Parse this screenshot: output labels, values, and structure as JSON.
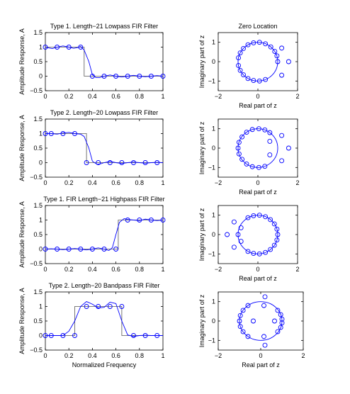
{
  "chart_data": [
    {
      "type": "line",
      "title": "Type 1. Length−21 Lowpass FIR Filter",
      "xlabel": "",
      "ylabel": "Amplitude Response, A",
      "xlim": [
        0,
        1
      ],
      "ylim": [
        -0.5,
        1.5
      ],
      "xticks": [
        "0",
        "0.2",
        "0.4",
        "0.6",
        "0.8",
        "1"
      ],
      "yticks": [
        "−0.5",
        "0",
        "0.5",
        "1",
        "1.5"
      ],
      "ideal": [
        [
          0,
          1
        ],
        [
          0.33,
          1
        ],
        [
          0.33,
          0
        ],
        [
          1,
          0
        ]
      ],
      "response": [
        [
          0,
          1
        ],
        [
          0.03,
          0.97
        ],
        [
          0.06,
          0.95
        ],
        [
          0.1,
          1
        ],
        [
          0.15,
          1.04
        ],
        [
          0.2,
          1
        ],
        [
          0.24,
          0.96
        ],
        [
          0.27,
          0.98
        ],
        [
          0.3,
          1.02
        ],
        [
          0.33,
          0.9
        ],
        [
          0.37,
          0.5
        ],
        [
          0.4,
          0.05
        ],
        [
          0.43,
          -0.05
        ],
        [
          0.46,
          -0.05
        ],
        [
          0.5,
          0
        ],
        [
          0.55,
          0.04
        ],
        [
          0.6,
          0
        ],
        [
          0.65,
          -0.03
        ],
        [
          0.7,
          0
        ],
        [
          0.75,
          0.03
        ],
        [
          0.8,
          0
        ],
        [
          0.85,
          -0.02
        ],
        [
          0.9,
          0
        ],
        [
          0.95,
          0.02
        ],
        [
          1,
          0
        ]
      ],
      "samples": [
        [
          0,
          1
        ],
        [
          0.1,
          1
        ],
        [
          0.2,
          1
        ],
        [
          0.3,
          1
        ],
        [
          0.4,
          0
        ],
        [
          0.5,
          0
        ],
        [
          0.6,
          0
        ],
        [
          0.7,
          0
        ],
        [
          0.8,
          0
        ],
        [
          0.9,
          0
        ],
        [
          1,
          0
        ]
      ]
    },
    {
      "type": "scatter",
      "title": "Zero Location",
      "xlabel": "Real part of z",
      "ylabel": "Imaginary part of z",
      "xlim": [
        -2,
        2
      ],
      "ylim": [
        -1.5,
        1.5
      ],
      "xticks": [
        "−2",
        "0",
        "2"
      ],
      "yticks": [
        "−1",
        "0",
        "1"
      ],
      "zeros": [
        [
          1.0,
          0.0
        ],
        [
          0.96,
          0.3
        ],
        [
          0.85,
          0.53
        ],
        [
          0.65,
          0.76
        ],
        [
          0.38,
          0.92
        ],
        [
          0.08,
          1.0
        ],
        [
          -0.22,
          0.97
        ],
        [
          -0.5,
          0.87
        ],
        [
          -0.73,
          0.68
        ],
        [
          -0.89,
          0.45
        ],
        [
          -0.98,
          0.2
        ],
        [
          -0.98,
          -0.2
        ],
        [
          -0.89,
          -0.45
        ],
        [
          -0.73,
          -0.68
        ],
        [
          -0.5,
          -0.87
        ],
        [
          -0.22,
          -0.97
        ],
        [
          0.08,
          -1.0
        ],
        [
          0.38,
          -0.92
        ],
        [
          1.2,
          0.7
        ],
        [
          1.2,
          -0.7
        ],
        [
          1.55,
          0.0
        ]
      ]
    },
    {
      "type": "line",
      "title": "Type 2. Length−20 Lowpass FIR Filter",
      "xlabel": "",
      "ylabel": "Amplitude Response, A",
      "xlim": [
        0,
        1
      ],
      "ylim": [
        -0.5,
        1.5
      ],
      "xticks": [
        "0",
        "0.2",
        "0.4",
        "0.6",
        "0.8",
        "1"
      ],
      "yticks": [
        "−0.5",
        "0",
        "0.5",
        "1",
        "1.5"
      ],
      "ideal": [
        [
          0,
          1
        ],
        [
          0.35,
          1
        ],
        [
          0.35,
          0
        ],
        [
          1,
          0
        ]
      ],
      "response": [
        [
          0,
          1
        ],
        [
          0.05,
          1
        ],
        [
          0.1,
          0.98
        ],
        [
          0.15,
          1.02
        ],
        [
          0.2,
          1.04
        ],
        [
          0.25,
          1
        ],
        [
          0.3,
          0.98
        ],
        [
          0.33,
          0.9
        ],
        [
          0.37,
          0.5
        ],
        [
          0.4,
          0.05
        ],
        [
          0.44,
          -0.06
        ],
        [
          0.47,
          -0.04
        ],
        [
          0.5,
          0
        ],
        [
          0.55,
          0.04
        ],
        [
          0.6,
          0
        ],
        [
          0.65,
          -0.03
        ],
        [
          0.7,
          0
        ],
        [
          0.75,
          0.02
        ],
        [
          0.8,
          0
        ],
        [
          0.85,
          -0.02
        ],
        [
          0.9,
          0
        ],
        [
          0.95,
          0.01
        ],
        [
          1,
          0
        ]
      ],
      "samples": [
        [
          0,
          1
        ],
        [
          0.05,
          1
        ],
        [
          0.15,
          1
        ],
        [
          0.25,
          1
        ],
        [
          0.35,
          0
        ],
        [
          0.45,
          0
        ],
        [
          0.55,
          0
        ],
        [
          0.65,
          0
        ],
        [
          0.75,
          0
        ],
        [
          0.85,
          0
        ],
        [
          0.95,
          0
        ]
      ]
    },
    {
      "type": "scatter",
      "title": "",
      "xlabel": "Real part of z",
      "ylabel": "Imaginary part of z",
      "xlim": [
        -2,
        2
      ],
      "ylim": [
        -1.5,
        1.5
      ],
      "xticks": [
        "−2",
        "0",
        "2"
      ],
      "yticks": [
        "−1",
        "0",
        "1"
      ],
      "zeros": [
        [
          -1.0,
          0.0
        ],
        [
          -0.95,
          0.3
        ],
        [
          -0.8,
          0.58
        ],
        [
          -0.57,
          0.82
        ],
        [
          -0.28,
          0.96
        ],
        [
          0.05,
          1.0
        ],
        [
          0.35,
          0.94
        ],
        [
          0.6,
          0.8
        ],
        [
          -0.95,
          -0.3
        ],
        [
          -0.8,
          -0.58
        ],
        [
          -0.57,
          -0.82
        ],
        [
          -0.28,
          -0.96
        ],
        [
          0.05,
          -1.0
        ],
        [
          0.35,
          -0.94
        ],
        [
          0.6,
          0.35
        ],
        [
          0.6,
          -0.35
        ],
        [
          1.2,
          0.65
        ],
        [
          1.2,
          -0.65
        ],
        [
          1.55,
          0.0
        ]
      ]
    },
    {
      "type": "line",
      "title": "Type 1. FIR Length−21 Highpass FIR Filter",
      "xlabel": "",
      "ylabel": "Amplitude Response, A",
      "xlim": [
        0,
        1
      ],
      "ylim": [
        -0.5,
        1.5
      ],
      "xticks": [
        "0",
        "0.2",
        "0.4",
        "0.6",
        "0.8",
        "1"
      ],
      "yticks": [
        "−0.5",
        "0",
        "0.5",
        "1",
        "1.5"
      ],
      "ideal": [
        [
          0,
          0
        ],
        [
          0.62,
          0
        ],
        [
          0.62,
          1
        ],
        [
          1,
          1
        ]
      ],
      "response": [
        [
          0,
          0
        ],
        [
          0.05,
          0.01
        ],
        [
          0.1,
          0
        ],
        [
          0.15,
          -0.02
        ],
        [
          0.2,
          0
        ],
        [
          0.25,
          0.02
        ],
        [
          0.3,
          0
        ],
        [
          0.35,
          -0.03
        ],
        [
          0.4,
          0
        ],
        [
          0.45,
          0.04
        ],
        [
          0.5,
          0
        ],
        [
          0.54,
          -0.05
        ],
        [
          0.57,
          0.05
        ],
        [
          0.6,
          0.5
        ],
        [
          0.63,
          0.92
        ],
        [
          0.67,
          1.05
        ],
        [
          0.7,
          1.02
        ],
        [
          0.75,
          1
        ],
        [
          0.8,
          0.98
        ],
        [
          0.85,
          1.03
        ],
        [
          0.9,
          1
        ],
        [
          0.95,
          0.98
        ],
        [
          1,
          1
        ]
      ],
      "samples": [
        [
          0,
          0
        ],
        [
          0.1,
          0
        ],
        [
          0.2,
          0
        ],
        [
          0.3,
          0
        ],
        [
          0.4,
          0
        ],
        [
          0.5,
          0
        ],
        [
          0.6,
          0
        ],
        [
          0.7,
          1
        ],
        [
          0.8,
          1
        ],
        [
          0.9,
          1
        ],
        [
          1,
          1
        ]
      ]
    },
    {
      "type": "scatter",
      "title": "",
      "xlabel": "Real part of z",
      "ylabel": "Imaginary part of z",
      "xlim": [
        -2,
        2
      ],
      "ylim": [
        -1.5,
        1.5
      ],
      "xticks": [
        "−2",
        "0",
        "2"
      ],
      "yticks": [
        "−1",
        "0",
        "1"
      ],
      "zeros": [
        [
          -1.0,
          0.0
        ],
        [
          -1.55,
          0.0
        ],
        [
          -1.2,
          0.65
        ],
        [
          -1.2,
          -0.65
        ],
        [
          -0.85,
          0.35
        ],
        [
          -0.85,
          -0.35
        ],
        [
          -0.5,
          0.87
        ],
        [
          -0.22,
          0.97
        ],
        [
          0.08,
          1.0
        ],
        [
          0.38,
          0.92
        ],
        [
          0.63,
          0.77
        ],
        [
          0.83,
          0.55
        ],
        [
          0.96,
          0.28
        ],
        [
          1.0,
          0.0
        ],
        [
          -0.5,
          -0.87
        ],
        [
          -0.22,
          -0.97
        ],
        [
          0.08,
          -1.0
        ],
        [
          0.38,
          -0.92
        ],
        [
          0.63,
          -0.77
        ],
        [
          0.83,
          -0.55
        ],
        [
          0.96,
          -0.28
        ]
      ]
    },
    {
      "type": "line",
      "title": "Type 2. Length−20 Bandpass FIR Filter",
      "xlabel": "Normalized Frequency",
      "ylabel": "Amplitude Response, A",
      "xlim": [
        0,
        1
      ],
      "ylim": [
        -0.5,
        1.5
      ],
      "xticks": [
        "0",
        "0.2",
        "0.4",
        "0.6",
        "0.8",
        "1"
      ],
      "yticks": [
        "−0.5",
        "0",
        "0.5",
        "1",
        "1.5"
      ],
      "ideal": [
        [
          0,
          0
        ],
        [
          0.25,
          0
        ],
        [
          0.25,
          1
        ],
        [
          0.65,
          1
        ],
        [
          0.65,
          0
        ],
        [
          1,
          0
        ]
      ],
      "response": [
        [
          0,
          0
        ],
        [
          0.05,
          0
        ],
        [
          0.1,
          0
        ],
        [
          0.15,
          0
        ],
        [
          0.2,
          0.15
        ],
        [
          0.25,
          0.5
        ],
        [
          0.3,
          1.0
        ],
        [
          0.35,
          1.17
        ],
        [
          0.4,
          1.08
        ],
        [
          0.45,
          0.95
        ],
        [
          0.5,
          0.97
        ],
        [
          0.55,
          1.15
        ],
        [
          0.6,
          1.1
        ],
        [
          0.65,
          0.5
        ],
        [
          0.7,
          0.02
        ],
        [
          0.75,
          -0.03
        ],
        [
          0.8,
          0
        ],
        [
          0.85,
          0.01
        ],
        [
          0.9,
          0
        ],
        [
          0.95,
          0
        ],
        [
          1,
          0
        ]
      ],
      "samples": [
        [
          0,
          0
        ],
        [
          0.05,
          0
        ],
        [
          0.15,
          0
        ],
        [
          0.25,
          0
        ],
        [
          0.35,
          1
        ],
        [
          0.45,
          1
        ],
        [
          0.55,
          1
        ],
        [
          0.65,
          1
        ],
        [
          0.75,
          0
        ],
        [
          0.85,
          0
        ],
        [
          0.95,
          0
        ]
      ]
    },
    {
      "type": "scatter",
      "title": "",
      "xlabel": "Real part of z",
      "ylabel": "Imaginary part of z",
      "xlim": [
        -2,
        2
      ],
      "ylim": [
        -1.5,
        1.5
      ],
      "xticks": [
        "−2",
        "0",
        "2"
      ],
      "yticks": [
        "−1",
        "0",
        "1"
      ],
      "zeros": [
        [
          -1.0,
          0.0
        ],
        [
          -0.96,
          0.28
        ],
        [
          -0.83,
          0.55
        ],
        [
          -0.6,
          0.8
        ],
        [
          -0.96,
          -0.28
        ],
        [
          -0.83,
          -0.55
        ],
        [
          -0.6,
          -0.8
        ],
        [
          0.2,
          1.25
        ],
        [
          0.2,
          -1.25
        ],
        [
          0.8,
          0.55
        ],
        [
          0.94,
          0.33
        ],
        [
          1.0,
          0.1
        ],
        [
          0.8,
          -0.55
        ],
        [
          0.94,
          -0.33
        ],
        [
          1.0,
          -0.1
        ],
        [
          -0.35,
          0.0
        ],
        [
          0.15,
          0.8
        ],
        [
          0.15,
          -0.8
        ],
        [
          0.65,
          0.0
        ]
      ]
    }
  ]
}
